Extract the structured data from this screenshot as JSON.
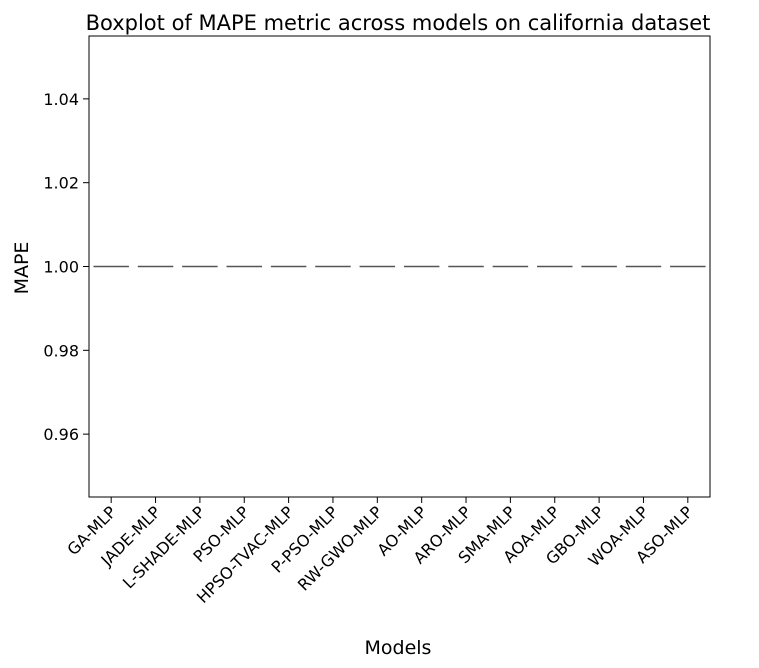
{
  "chart_data": {
    "type": "box",
    "title": "Boxplot of MAPE metric across models on california dataset",
    "xlabel": "Models",
    "ylabel": "MAPE",
    "ylim": [
      0.945,
      1.055
    ],
    "yticks": [
      "0.96",
      "0.98",
      "1.00",
      "1.02",
      "1.04"
    ],
    "grid": false,
    "categories": [
      "GA-MLP",
      "JADE-MLP",
      "L-SHADE-MLP",
      "PSO-MLP",
      "HPSO-TVAC-MLP",
      "P-PSO-MLP",
      "RW-GWO-MLP",
      "AO-MLP",
      "ARO-MLP",
      "SMA-MLP",
      "AOA-MLP",
      "GBO-MLP",
      "WOA-MLP",
      "ASO-MLP"
    ],
    "values": [
      1.0,
      1.0,
      1.0,
      1.0,
      1.0,
      1.0,
      1.0,
      1.0,
      1.0,
      1.0,
      1.0,
      1.0,
      1.0,
      1.0
    ],
    "box_color": "#555555"
  }
}
